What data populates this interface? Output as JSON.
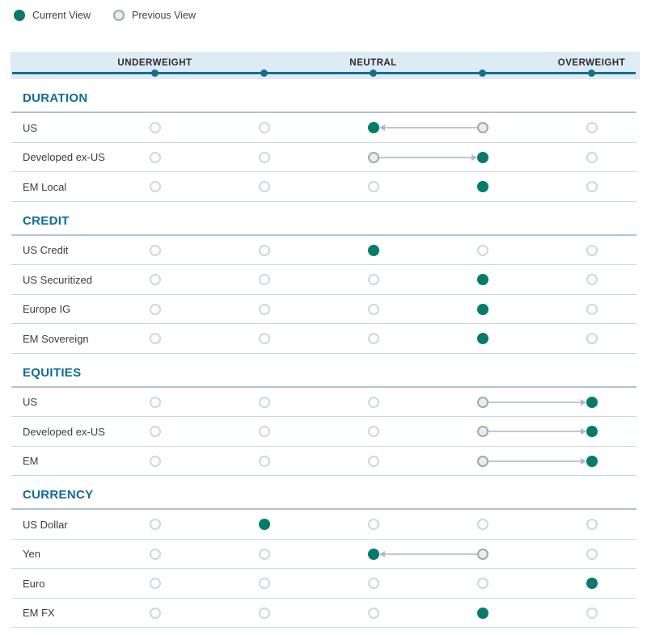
{
  "legend": {
    "current": "Current View",
    "previous": "Previous View"
  },
  "header": {
    "labels": [
      "UNDERWEIGHT",
      "NEUTRAL",
      "OVERWEIGHT"
    ]
  },
  "colors": {
    "current_dot": "#087a6b",
    "previous_fill": "#e8eee9",
    "previous_border": "#9fabac",
    "empty_border": "#c8d9e2",
    "band_bg": "#dcebf4",
    "band_line": "#14708e",
    "section_title": "#0f6b94",
    "arrow_line": "#b9c9d5",
    "arrow_head": "#a8bccb"
  },
  "chart_data": {
    "type": "table",
    "scale": {
      "positions": 5,
      "labels": {
        "1": "Underweight",
        "3": "Neutral",
        "5": "Overweight"
      }
    },
    "legend_note": "Filled dot = Current View, outlined dot = Previous View, arrow shows change direction",
    "sections": [
      {
        "name": "DURATION",
        "rows": [
          {
            "label": "US",
            "current": 3,
            "previous": 4
          },
          {
            "label": "Developed ex-US",
            "current": 4,
            "previous": 3
          },
          {
            "label": "EM Local",
            "current": 4,
            "previous": null
          }
        ]
      },
      {
        "name": "CREDIT",
        "rows": [
          {
            "label": "US Credit",
            "current": 3,
            "previous": null
          },
          {
            "label": "US Securitized",
            "current": 4,
            "previous": null
          },
          {
            "label": "Europe IG",
            "current": 4,
            "previous": null
          },
          {
            "label": "EM Sovereign",
            "current": 4,
            "previous": null
          }
        ]
      },
      {
        "name": "EQUITIES",
        "rows": [
          {
            "label": "US",
            "current": 5,
            "previous": 4
          },
          {
            "label": "Developed ex-US",
            "current": 5,
            "previous": 4
          },
          {
            "label": "EM",
            "current": 5,
            "previous": 4
          }
        ]
      },
      {
        "name": "CURRENCY",
        "rows": [
          {
            "label": "US Dollar",
            "current": 2,
            "previous": null
          },
          {
            "label": "Yen",
            "current": 3,
            "previous": 4
          },
          {
            "label": "Euro",
            "current": 5,
            "previous": null
          },
          {
            "label": "EM FX",
            "current": 4,
            "previous": null
          }
        ]
      }
    ]
  }
}
